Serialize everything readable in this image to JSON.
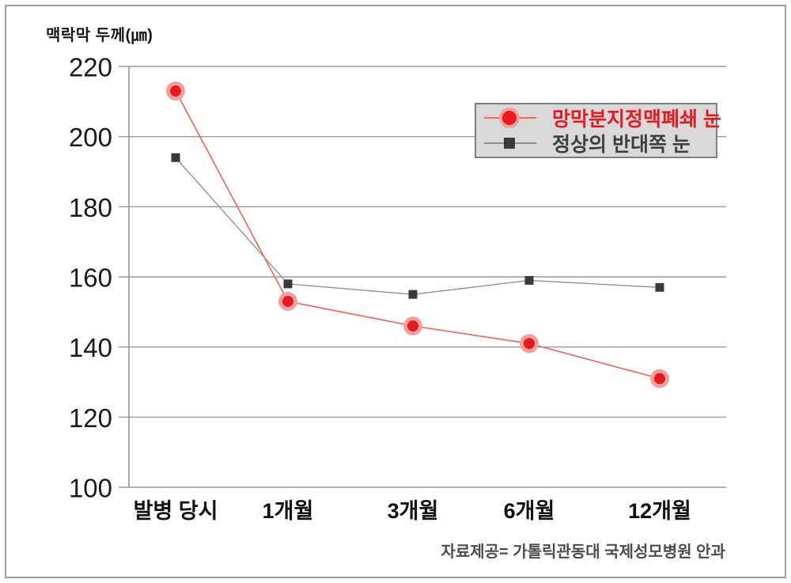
{
  "title": "맥락막 두께(㎛)",
  "source_note": "자료제공= 가톨릭관동대 국제성모병원 안과",
  "colors": {
    "grid": "#9a9a9a",
    "axis": "#8a8a8a",
    "tick_text": "#1a1a1a",
    "legend_bg": "#d9d9d9",
    "legend_border": "#7f7f7f",
    "source_text": "#4d4d4d"
  },
  "chart_data": {
    "type": "line",
    "title": "맥락막 두께(㎛)",
    "categories": [
      "발병 당시",
      "1개월",
      "3개월",
      "6개월",
      "12개월"
    ],
    "series": [
      {
        "name": "망막분지정맥폐쇄 눈",
        "values": [
          213,
          153,
          146,
          141,
          131
        ],
        "marker": "circle",
        "color": "#e8191f",
        "halo_color": "#f2a09b",
        "line_color": "#ee6a60",
        "label_color": "#e8191f"
      },
      {
        "name": "정상의 반대쪽 눈",
        "values": [
          194,
          158,
          155,
          159,
          157
        ],
        "marker": "square",
        "color": "#3a3a3a",
        "halo_color": "",
        "line_color": "#8f8f8f",
        "label_color": "#3f3f3f"
      }
    ],
    "xlabel": "",
    "ylabel": "맥락막 두께(㎛)",
    "ylim": [
      100,
      220
    ],
    "yticks": [
      220,
      200,
      180,
      160,
      140,
      120,
      100
    ],
    "grid": true,
    "legend_position": "top-right"
  }
}
